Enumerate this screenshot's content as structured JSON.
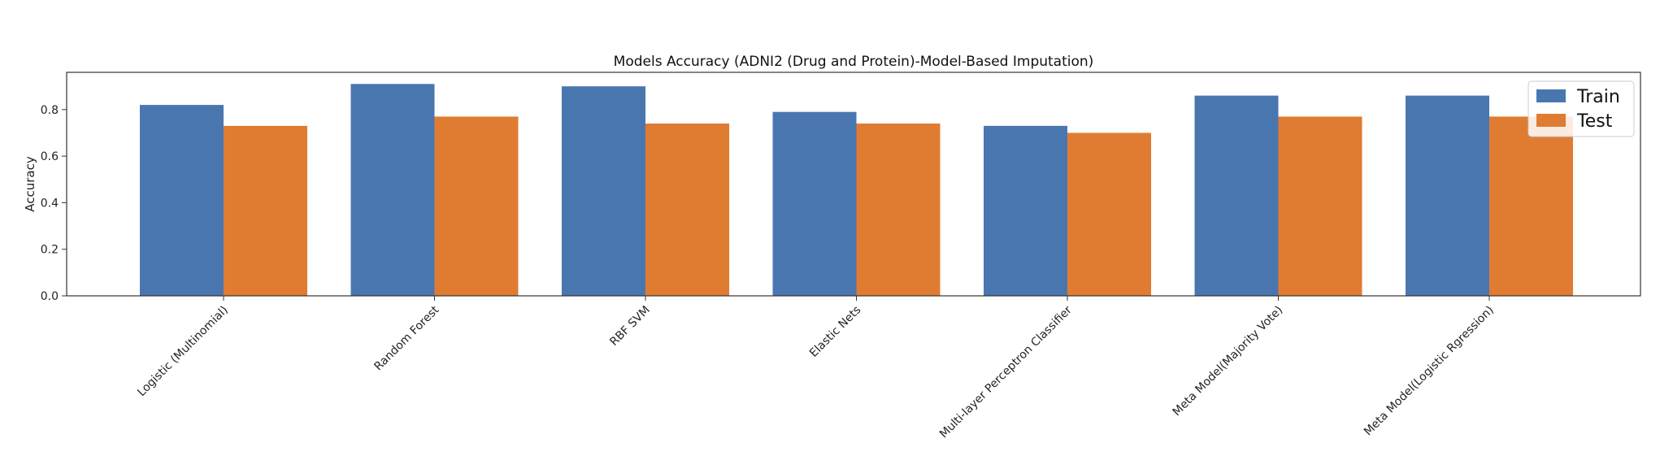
{
  "chart_data": {
    "type": "bar",
    "title": "Models Accuracy (ADNI2 (Drug and Protein)-Model-Based Imputation)",
    "xlabel": "",
    "ylabel": "Accuracy",
    "ylim": [
      0,
      0.96
    ],
    "yticks": [
      0.0,
      0.2,
      0.4,
      0.6,
      0.8
    ],
    "ytick_labels": [
      "0.0",
      "0.2",
      "0.4",
      "0.6",
      "0.8"
    ],
    "grid": false,
    "legend_position": "top-right",
    "categories": [
      "Logistic (Multinomial)",
      "Random Forest",
      "RBF SVM",
      "Elastic Nets",
      "Multi-layer Perceptron Classifier",
      "Meta Model(Majority Vote)",
      "Meta Model(Logistic Rgression)"
    ],
    "series": [
      {
        "name": "Train",
        "color": "#4a76b0",
        "values": [
          0.82,
          0.91,
          0.9,
          0.79,
          0.73,
          0.86,
          0.86
        ]
      },
      {
        "name": "Test",
        "color": "#e07c32",
        "values": [
          0.73,
          0.77,
          0.74,
          0.74,
          0.7,
          0.77,
          0.77
        ]
      }
    ]
  }
}
